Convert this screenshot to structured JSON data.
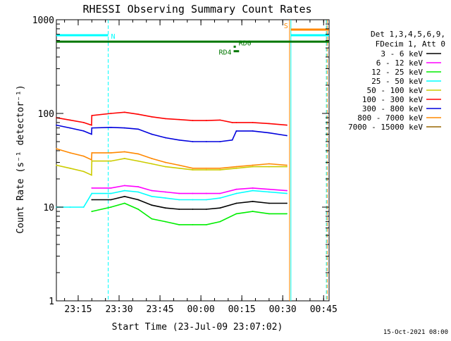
{
  "chart_data": {
    "type": "line",
    "title": "RHESSI Observing Summary Count Rates",
    "xlabel": "Start Time (23-Jul-09 23:07:02)",
    "ylabel": "Count Rate (s⁻¹ detector⁻¹)",
    "y_scale": "log",
    "ylim": [
      1,
      1000
    ],
    "xlim": [
      "23:07:02",
      "00:47:00"
    ],
    "x_unit": "minutes",
    "x_ticks": [
      {
        "at": 8,
        "label": "23:15"
      },
      {
        "at": 23,
        "label": "23:30"
      },
      {
        "at": 38,
        "label": "23:45"
      },
      {
        "at": 53,
        "label": "00:00"
      },
      {
        "at": 68,
        "label": "00:15"
      },
      {
        "at": 83,
        "label": "00:30"
      },
      {
        "at": 98,
        "label": "00:45"
      }
    ],
    "y_ticks": [
      {
        "value": 1,
        "label": "1"
      },
      {
        "value": 10,
        "label": "10"
      },
      {
        "value": 100,
        "label": "100"
      },
      {
        "value": 1000,
        "label": "1000"
      }
    ],
    "grid": false,
    "legend_position": "right",
    "legend_header": [
      "Det 1,3,4,5,6,9,",
      "FDecim 1, Att 0"
    ],
    "timestamp": "15-Oct-2021 08:00",
    "series": [
      {
        "name": "3 - 6 keV",
        "color": "#000000",
        "x": [
          13,
          20,
          25,
          30,
          35,
          40,
          45,
          50,
          55,
          60,
          66,
          72,
          78,
          84.5
        ],
        "y": [
          12,
          12,
          13,
          12,
          10.5,
          9.8,
          9.5,
          9.5,
          9.5,
          9.8,
          11,
          11.5,
          11,
          11
        ]
      },
      {
        "name": "6 - 12 keV",
        "color": "#ff00ff",
        "x": [
          13,
          20,
          25,
          30,
          35,
          40,
          45,
          50,
          55,
          60,
          66,
          72,
          78,
          84.5
        ],
        "y": [
          16,
          16,
          17,
          16.5,
          15,
          14.5,
          14,
          14,
          14,
          14,
          15.5,
          16,
          15.5,
          15
        ]
      },
      {
        "name": "12 - 25 keV",
        "color": "#00ee00",
        "x": [
          13,
          20,
          25,
          30,
          35,
          40,
          45,
          50,
          55,
          60,
          66,
          72,
          78,
          84.5
        ],
        "y": [
          9,
          10,
          11,
          9.5,
          7.5,
          7,
          6.5,
          6.5,
          6.5,
          7,
          8.5,
          9,
          8.5,
          8.5
        ]
      },
      {
        "name": "25 - 50 keV",
        "color": "#00ffff",
        "x": [
          0,
          5,
          10,
          13,
          20,
          25,
          30,
          35,
          40,
          45,
          50,
          55,
          60,
          66,
          72,
          78,
          84.5
        ],
        "y": [
          10,
          10,
          10,
          14,
          14,
          15,
          14.5,
          13,
          12.5,
          12,
          12,
          12,
          12.5,
          14,
          15,
          14.5,
          14
        ]
      },
      {
        "name": "50 - 100 keV",
        "color": "#cccc00",
        "x": [
          0,
          5,
          10,
          12.9,
          13,
          20,
          25,
          30,
          35,
          40,
          45,
          50,
          55,
          60,
          66,
          72,
          78,
          84.5
        ],
        "y": [
          28,
          26,
          24,
          22,
          31,
          31,
          33,
          31,
          29,
          27,
          26,
          25,
          25,
          25,
          26,
          27,
          27,
          27
        ]
      },
      {
        "name": "100 - 300 keV",
        "color": "#ff0000",
        "x": [
          0,
          5,
          10,
          12.9,
          13,
          20,
          25,
          30,
          35,
          40,
          45,
          50,
          55,
          60,
          64.5,
          66,
          72,
          78,
          84.5
        ],
        "y": [
          90,
          85,
          80,
          75,
          95,
          100,
          103,
          98,
          92,
          88,
          86,
          84,
          84,
          85,
          80,
          80,
          80,
          78,
          75
        ]
      },
      {
        "name": "300 - 800 keV",
        "color": "#0000dd",
        "x": [
          0,
          5,
          10,
          12.9,
          13,
          20,
          25,
          30,
          35,
          40,
          45,
          50,
          55,
          60,
          64.5,
          66,
          72,
          78,
          84.5
        ],
        "y": [
          75,
          70,
          65,
          60,
          70,
          71,
          70,
          68,
          60,
          55,
          52,
          50,
          50,
          50,
          52,
          65,
          65,
          62,
          58
        ]
      },
      {
        "name": "800 - 7000 keV",
        "color": "#ff8800",
        "x": [
          0,
          5,
          10,
          12.9,
          13,
          20,
          25,
          30,
          35,
          40,
          45,
          50,
          55,
          60,
          66,
          72,
          78,
          84.5
        ],
        "y": [
          42,
          38,
          35,
          32,
          38,
          38,
          39,
          37,
          33,
          30,
          28,
          26,
          26,
          26,
          27,
          28,
          29,
          28
        ]
      },
      {
        "name": "7000 - 15000 keV",
        "color": "#996600",
        "x": [],
        "y": []
      }
    ],
    "flag_bars": [
      {
        "label": "N",
        "color": "#00ffff",
        "x_start": 0,
        "x_end": 19,
        "y_frac": 0.945
      },
      {
        "label": "",
        "color": "#00ffff",
        "x_start": 86,
        "x_end": 100,
        "y_frac": 0.945
      },
      {
        "label": "S",
        "color": "#ff8800",
        "x_start": 86,
        "x_end": 100,
        "y_frac": 0.965
      },
      {
        "label": "",
        "color": "#007700",
        "x_start": 0,
        "x_end": 100,
        "y_frac": 0.922
      },
      {
        "label": "RD0",
        "color": "#007700",
        "x_start": 65,
        "x_end": 65.8,
        "y_frac": 0.904
      },
      {
        "label": "RD4",
        "color": "#007700",
        "x_start": 65,
        "x_end": 67,
        "y_frac": 0.888
      }
    ],
    "markers": [
      {
        "x": 19,
        "color": "#00ffff",
        "style": "dashed"
      },
      {
        "x": 86,
        "color": "#00ffff",
        "style": "solid"
      },
      {
        "x": 85.5,
        "color": "#ff8800",
        "style": "solid"
      },
      {
        "x": 99,
        "color": "#00ffff",
        "style": "dashed"
      },
      {
        "x": 99.3,
        "color": "#ff8800",
        "style": "dashed"
      }
    ]
  }
}
